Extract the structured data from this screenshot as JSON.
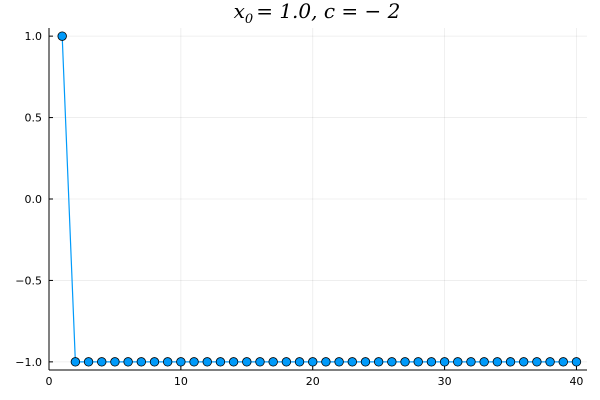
{
  "chart_data": {
    "type": "line",
    "title": "x_0 = 1.0, c = -2",
    "title_parts": {
      "lhs": "x",
      "sub": "0",
      "rest": "= 1.0, c = − 2"
    },
    "xlabel": "",
    "ylabel": "",
    "xlim": [
      0,
      40.8
    ],
    "ylim": [
      -1.05,
      1.05
    ],
    "xticks": [
      0,
      10,
      20,
      30,
      40
    ],
    "yticks": [
      -1.0,
      -0.5,
      0.0,
      0.5,
      1.0
    ],
    "xtick_labels": [
      "0",
      "10",
      "20",
      "30",
      "40"
    ],
    "ytick_labels": [
      "−1.0",
      "−0.5",
      "0.0",
      "0.5",
      "1.0"
    ],
    "grid": true,
    "legend": "none",
    "series": [
      {
        "color": "#009AFA",
        "marker": "circle",
        "x": [
          1,
          2,
          3,
          4,
          5,
          6,
          7,
          8,
          9,
          10,
          11,
          12,
          13,
          14,
          15,
          16,
          17,
          18,
          19,
          20,
          21,
          22,
          23,
          24,
          25,
          26,
          27,
          28,
          29,
          30,
          31,
          32,
          33,
          34,
          35,
          36,
          37,
          38,
          39,
          40
        ],
        "y": [
          1,
          -1,
          -1,
          -1,
          -1,
          -1,
          -1,
          -1,
          -1,
          -1,
          -1,
          -1,
          -1,
          -1,
          -1,
          -1,
          -1,
          -1,
          -1,
          -1,
          -1,
          -1,
          -1,
          -1,
          -1,
          -1,
          -1,
          -1,
          -1,
          -1,
          -1,
          -1,
          -1,
          -1,
          -1,
          -1,
          -1,
          -1,
          -1,
          -1
        ]
      }
    ]
  }
}
